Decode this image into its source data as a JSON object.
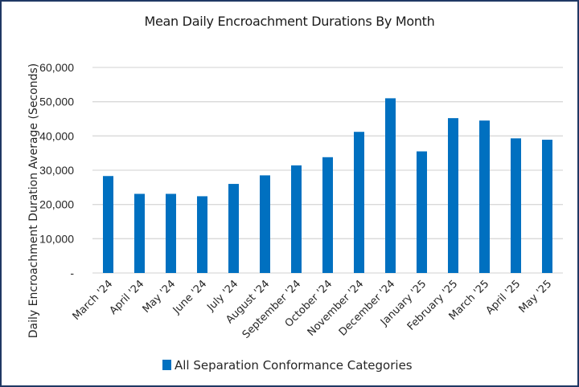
{
  "chart_data": {
    "type": "bar",
    "title": "Mean Daily Encroachment Durations By Month",
    "xlabel": "",
    "ylabel": "Daily Encroachment Duration Average (Seconds)",
    "ylim": [
      0,
      60000
    ],
    "yticks": [
      0,
      10000,
      20000,
      30000,
      40000,
      50000,
      60000
    ],
    "ytick_labels": [
      "-",
      "10,000",
      "20,000",
      "30,000",
      "40,000",
      "50,000",
      "60,000"
    ],
    "grid": true,
    "legend_position": "bottom",
    "categories": [
      "March '24",
      "April '24",
      "May '24",
      "June '24",
      "July '24",
      "August '24",
      "September '24",
      "October '24",
      "November '24",
      "December '24",
      "January '25",
      "February '25",
      "March '25",
      "April '25",
      "May '25"
    ],
    "series": [
      {
        "name": "All Separation Conformance Categories",
        "color": "#0070c0",
        "values": [
          28300,
          23100,
          23100,
          22400,
          26000,
          28500,
          31400,
          33800,
          41200,
          51000,
          35500,
          45200,
          44500,
          39300,
          38900
        ]
      }
    ]
  }
}
